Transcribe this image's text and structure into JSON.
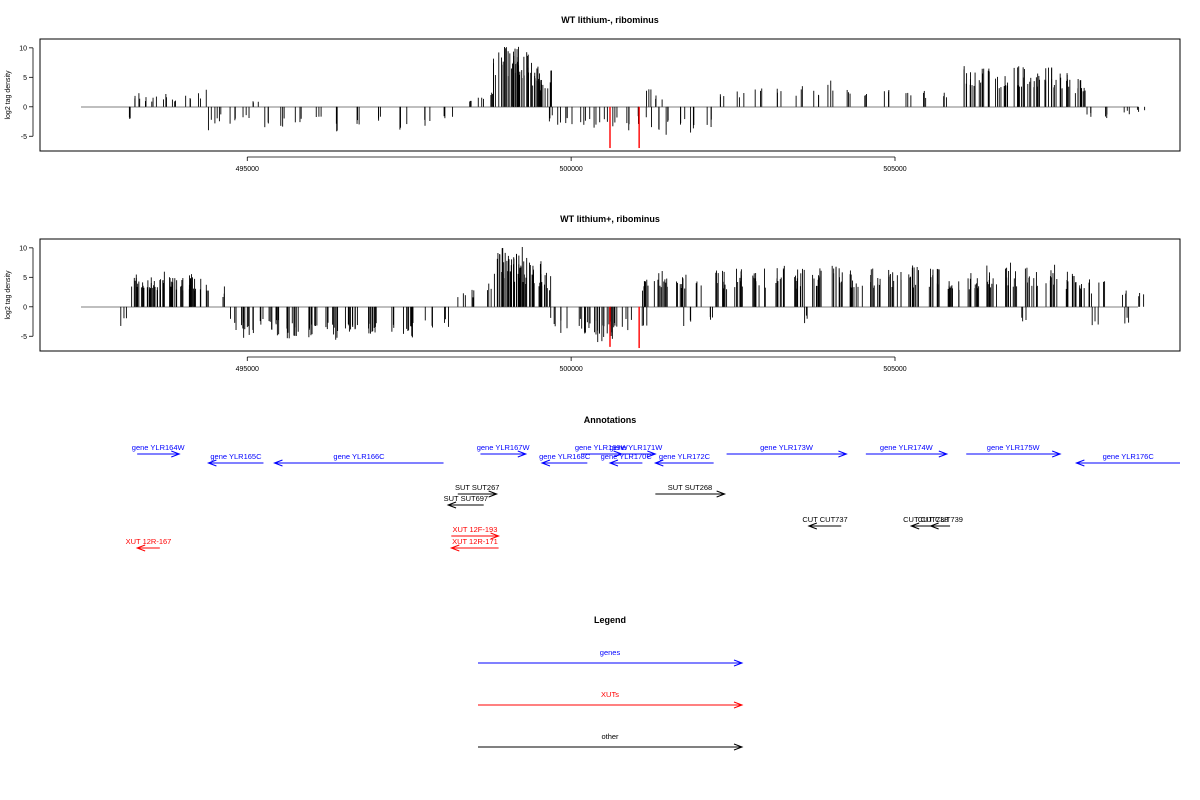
{
  "chart_data": [
    {
      "type": "bar",
      "title": "WT lithium-, ribominus",
      "ylabel": "log2 tag density",
      "xlabel": "",
      "xlim": [
        491800,
        509400
      ],
      "ylim": [
        -7.5,
        11.5
      ],
      "xticks": [
        495000,
        500000,
        505000
      ],
      "xtick_labels": [
        "495000",
        "500000",
        "505000"
      ],
      "yticks": [
        -5,
        0,
        5,
        10
      ],
      "ytick_labels": [
        "-5",
        "0",
        "5",
        "10"
      ],
      "highlight_color": "#ff0000",
      "series": [
        {
          "values": [
            [
              493150,
              -3.2
            ],
            [
              493300,
              2.6
            ],
            [
              493400,
              2.0
            ],
            [
              493550,
              1.8
            ],
            [
              493700,
              2.3
            ],
            [
              493900,
              1.5
            ],
            [
              494100,
              2.0
            ],
            [
              494300,
              2.9
            ],
            [
              494450,
              -4.0
            ],
            [
              494600,
              -2.5
            ],
            [
              494800,
              -3.8
            ],
            [
              495000,
              -2.0
            ],
            [
              495150,
              1.2
            ],
            [
              495300,
              -3.5
            ],
            [
              495500,
              -4.0
            ],
            [
              495800,
              -4.5
            ],
            [
              496100,
              -3.6
            ],
            [
              496400,
              -4.2
            ],
            [
              496700,
              -3.8
            ],
            [
              497000,
              -3.0
            ],
            [
              497400,
              -4.0
            ],
            [
              497800,
              -3.5
            ],
            [
              498100,
              -2.0
            ],
            [
              498400,
              1.5
            ],
            [
              498600,
              2.6
            ],
            [
              498750,
              3.0
            ],
            [
              498900,
              10.5
            ],
            [
              499050,
              10.8
            ],
            [
              499150,
              9.5
            ],
            [
              499250,
              10.8
            ],
            [
              499350,
              9.0
            ],
            [
              499450,
              8.0
            ],
            [
              499600,
              6.2
            ],
            [
              499700,
              -2.5
            ],
            [
              499850,
              -3.5
            ],
            [
              500000,
              -3.0
            ],
            [
              500200,
              -3.6
            ],
            [
              500350,
              -4.5
            ],
            [
              500500,
              -4.0
            ],
            [
              500700,
              -3.8
            ],
            [
              500900,
              -4.5
            ],
            [
              501100,
              -3.5
            ],
            [
              501300,
              -4.0
            ],
            [
              501500,
              -4.8
            ],
            [
              501700,
              -4.2
            ],
            [
              501900,
              -4.5
            ],
            [
              502100,
              -3.5
            ],
            [
              501200,
              3.5
            ],
            [
              501350,
              2.0
            ],
            [
              502350,
              3.0
            ],
            [
              502600,
              2.8
            ],
            [
              502900,
              3.3
            ],
            [
              503200,
              3.1
            ],
            [
              503500,
              3.5
            ],
            [
              503800,
              3.0
            ],
            [
              504000,
              4.8
            ],
            [
              504300,
              3.2
            ],
            [
              504600,
              3.4
            ],
            [
              504900,
              3.0
            ],
            [
              505200,
              3.2
            ],
            [
              505500,
              2.8
            ],
            [
              505800,
              3.0
            ],
            [
              506150,
              7.0
            ],
            [
              506400,
              6.5
            ],
            [
              506650,
              5.8
            ],
            [
              506900,
              7.2
            ],
            [
              507150,
              6.0
            ],
            [
              507400,
              6.8
            ],
            [
              507650,
              6.2
            ],
            [
              507850,
              5.0
            ],
            [
              508000,
              -1.8
            ],
            [
              508300,
              -2.0
            ],
            [
              508600,
              -1.5
            ],
            [
              508800,
              -1.0
            ]
          ],
          "highlight": [
            [
              500600,
              -7.0
            ],
            [
              501050,
              -7.0
            ]
          ]
        }
      ]
    },
    {
      "type": "bar",
      "title": "WT lithium+, ribominus",
      "ylabel": "log2 tag density",
      "xlabel": "",
      "xlim": [
        491800,
        509400
      ],
      "ylim": [
        -7.5,
        11.5
      ],
      "xticks": [
        495000,
        500000,
        505000
      ],
      "xtick_labels": [
        "495000",
        "500000",
        "505000"
      ],
      "yticks": [
        -5,
        0,
        5,
        10
      ],
      "ytick_labels": [
        "-5",
        "0",
        "5",
        "10"
      ],
      "highlight_color": "#ff0000",
      "series": [
        {
          "values": [
            [
              493100,
              -3.5
            ],
            [
              493300,
              5.8
            ],
            [
              493450,
              5.0
            ],
            [
              493600,
              5.5
            ],
            [
              493750,
              6.0
            ],
            [
              493900,
              5.2
            ],
            [
              494050,
              5.8
            ],
            [
              494200,
              5.0
            ],
            [
              494400,
              4.5
            ],
            [
              494600,
              3.5
            ],
            [
              494800,
              -4.5
            ],
            [
              495000,
              -5.5
            ],
            [
              495200,
              -4.0
            ],
            [
              495400,
              -5.0
            ],
            [
              495700,
              -6.0
            ],
            [
              496000,
              -5.5
            ],
            [
              496300,
              -5.8
            ],
            [
              496600,
              -5.0
            ],
            [
              496900,
              -5.5
            ],
            [
              497200,
              -4.8
            ],
            [
              497500,
              -5.2
            ],
            [
              497800,
              -4.5
            ],
            [
              498100,
              -4.0
            ],
            [
              498300,
              2.5
            ],
            [
              498500,
              3.0
            ],
            [
              498700,
              4.0
            ],
            [
              498900,
              10.5
            ],
            [
              499050,
              10.2
            ],
            [
              499150,
              9.0
            ],
            [
              499250,
              10.5
            ],
            [
              499350,
              8.5
            ],
            [
              499450,
              8.0
            ],
            [
              499600,
              6.0
            ],
            [
              499700,
              -3.5
            ],
            [
              499900,
              -4.5
            ],
            [
              500100,
              -4.0
            ],
            [
              500300,
              -5.0
            ],
            [
              500500,
              -6.0
            ],
            [
              500700,
              -5.5
            ],
            [
              500900,
              -4.5
            ],
            [
              501100,
              -3.5
            ],
            [
              501200,
              5.0
            ],
            [
              501400,
              6.2
            ],
            [
              501700,
              5.5
            ],
            [
              502000,
              4.8
            ],
            [
              502300,
              6.2
            ],
            [
              502600,
              6.5
            ],
            [
              502900,
              6.8
            ],
            [
              503200,
              7.0
            ],
            [
              503500,
              6.5
            ],
            [
              503800,
              7.2
            ],
            [
              504100,
              7.8
            ],
            [
              504400,
              6.8
            ],
            [
              504700,
              7.0
            ],
            [
              505000,
              6.5
            ],
            [
              505300,
              7.2
            ],
            [
              505600,
              6.8
            ],
            [
              505900,
              5.5
            ],
            [
              506200,
              6.5
            ],
            [
              506500,
              7.0
            ],
            [
              506800,
              7.5
            ],
            [
              507100,
              6.8
            ],
            [
              507400,
              7.2
            ],
            [
              507700,
              6.5
            ],
            [
              507950,
              5.0
            ],
            [
              508200,
              4.5
            ],
            [
              508500,
              3.5
            ],
            [
              508800,
              2.5
            ],
            [
              501800,
              -4.5
            ],
            [
              502200,
              -3.5
            ],
            [
              503600,
              -3.0
            ],
            [
              507000,
              -3.0
            ],
            [
              508100,
              -4.0
            ],
            [
              508600,
              -3.5
            ]
          ],
          "highlight": [
            [
              500600,
              -6.8
            ],
            [
              501050,
              -7.0
            ]
          ]
        }
      ]
    }
  ],
  "annotations": {
    "title": "Annotations",
    "items": [
      {
        "label": "gene YLR164W",
        "start": 493300,
        "end": 493950,
        "dir": "right",
        "color": "#0000ff",
        "row": 1
      },
      {
        "label": "gene YLR165C",
        "start": 494400,
        "end": 495250,
        "dir": "left",
        "color": "#0000ff",
        "row": 2
      },
      {
        "label": "gene YLR166C",
        "start": 495420,
        "end": 498030,
        "dir": "left",
        "color": "#0000ff",
        "row": 2
      },
      {
        "label": "gene YLR167W",
        "start": 498600,
        "end": 499300,
        "dir": "right",
        "color": "#0000ff",
        "row": 1
      },
      {
        "label": "gene YLR168C",
        "start": 499550,
        "end": 500250,
        "dir": "left",
        "color": "#0000ff",
        "row": 2
      },
      {
        "label": "gene YLR169W",
        "start": 500150,
        "end": 500780,
        "dir": "right",
        "color": "#0000ff",
        "row": 1
      },
      {
        "label": "gene YLR170C",
        "start": 500600,
        "end": 501100,
        "dir": "left",
        "color": "#0000ff",
        "row": 2
      },
      {
        "label": "gene YLR171W",
        "start": 500700,
        "end": 501300,
        "dir": "right",
        "color": "#0000ff",
        "row": 1
      },
      {
        "label": "gene YLR172C",
        "start": 501300,
        "end": 502200,
        "dir": "left",
        "color": "#0000ff",
        "row": 2
      },
      {
        "label": "gene YLR173W",
        "start": 502400,
        "end": 504250,
        "dir": "right",
        "color": "#0000ff",
        "row": 1
      },
      {
        "label": "gene YLR174W",
        "start": 504550,
        "end": 505800,
        "dir": "right",
        "color": "#0000ff",
        "row": 1
      },
      {
        "label": "gene YLR175W",
        "start": 506100,
        "end": 507550,
        "dir": "right",
        "color": "#0000ff",
        "row": 1
      },
      {
        "label": "gene YLR176C",
        "start": 507800,
        "end": 509400,
        "dir": "left",
        "color": "#0000ff",
        "row": 2
      },
      {
        "label": "SUT SUT267",
        "start": 498250,
        "end": 498850,
        "dir": "right",
        "color": "#000000",
        "row": 4
      },
      {
        "label": "SUT SUT697",
        "start": 498100,
        "end": 498650,
        "dir": "left",
        "color": "#000000",
        "row": 5
      },
      {
        "label": "SUT SUT268",
        "start": 501300,
        "end": 502370,
        "dir": "right",
        "color": "#000000",
        "row": 4
      },
      {
        "label": "CUT CUT737",
        "start": 503670,
        "end": 504170,
        "dir": "left",
        "color": "#000000",
        "row": 6
      },
      {
        "label": "CUT CUT738",
        "start": 505250,
        "end": 505700,
        "dir": "left",
        "color": "#000000",
        "row": 6
      },
      {
        "label": "CUT CUT739",
        "start": 505550,
        "end": 505850,
        "dir": "left",
        "color": "#000000",
        "row": 6
      },
      {
        "label": "XUT 12F-193",
        "start": 498150,
        "end": 498880,
        "dir": "right",
        "color": "#ff0000",
        "row": 7
      },
      {
        "label": "XUT 12R-171",
        "start": 498150,
        "end": 498880,
        "dir": "left",
        "color": "#ff0000",
        "row": 8
      },
      {
        "label": "XUT 12R-167",
        "start": 493300,
        "end": 493650,
        "dir": "left",
        "color": "#ff0000",
        "row": 8
      }
    ]
  },
  "legend": {
    "title": "Legend",
    "entries": [
      {
        "label": "genes",
        "color": "#0000ff"
      },
      {
        "label": "XUTs",
        "color": "#ff0000"
      },
      {
        "label": "other",
        "color": "#000000"
      }
    ]
  }
}
